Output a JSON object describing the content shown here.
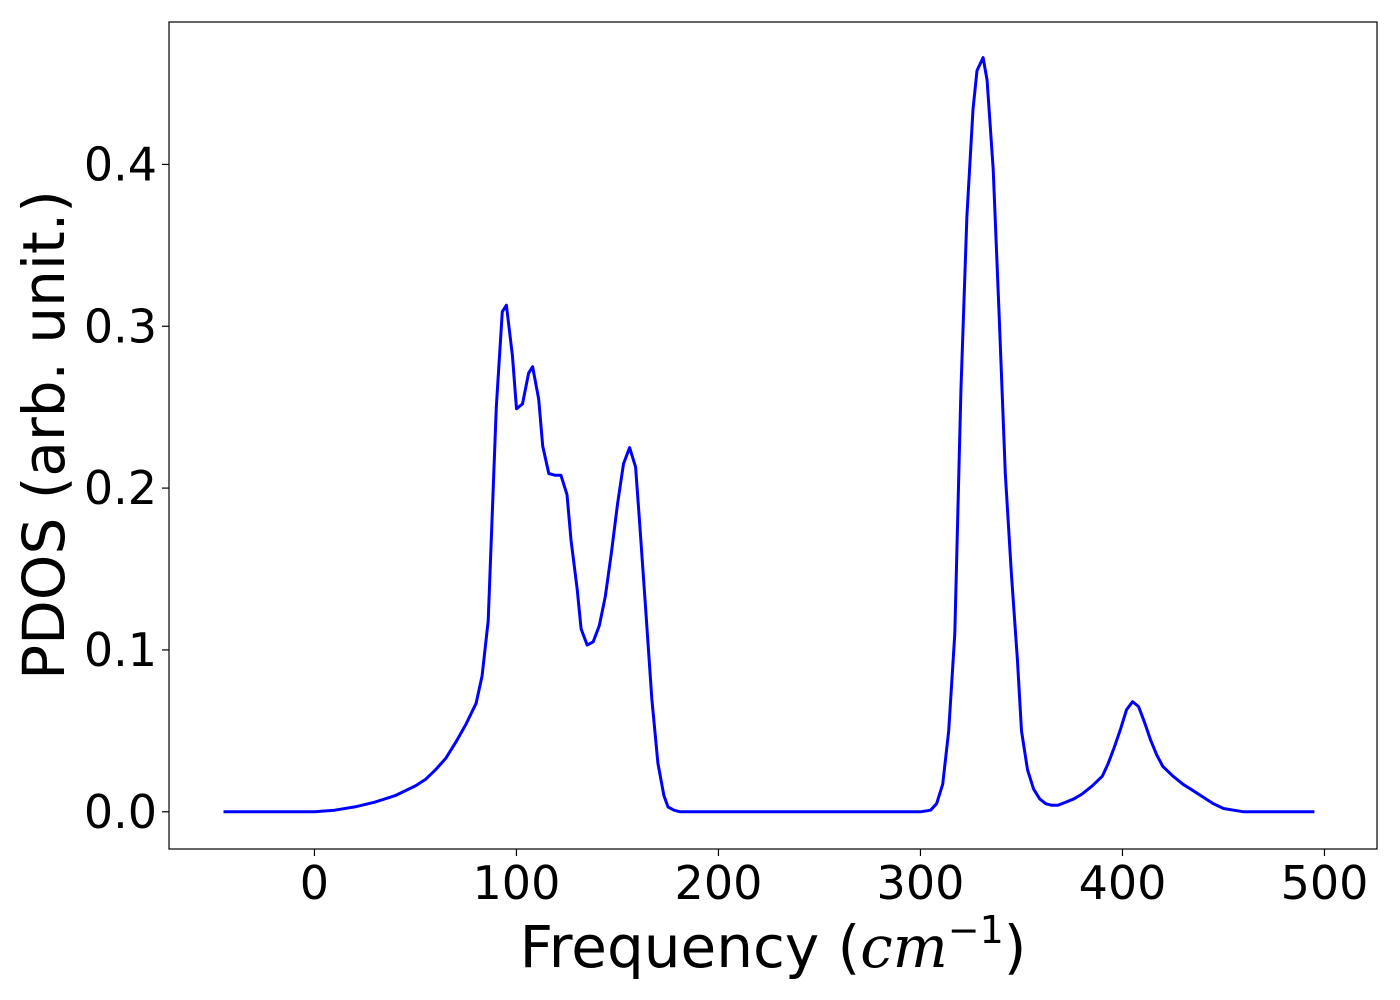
{
  "chart_data": {
    "type": "line",
    "title": "",
    "xlabel_prefix": "Frequency (",
    "xlabel_unit": "cm",
    "xlabel_exponent": "−1",
    "xlabel_suffix": ")",
    "ylabel": "PDOS (arb. unit.)",
    "xlim": [
      -72,
      526
    ],
    "ylim": [
      -0.023,
      0.488
    ],
    "xticks": [
      0,
      100,
      200,
      300,
      400,
      500
    ],
    "xtick_labels": [
      "0",
      "100",
      "200",
      "300",
      "400",
      "500"
    ],
    "yticks": [
      0.0,
      0.1,
      0.2,
      0.3,
      0.4
    ],
    "ytick_labels": [
      "0.0",
      "0.1",
      "0.2",
      "0.3",
      "0.4"
    ],
    "grid": false,
    "series": [
      {
        "color": "#0000ff",
        "x": [
          -45,
          0,
          10,
          20,
          30,
          40,
          50,
          55,
          60,
          65,
          70,
          75,
          80,
          83,
          86,
          90,
          93,
          95,
          98,
          100,
          103,
          106,
          108,
          111,
          113,
          116,
          119,
          122,
          125,
          127,
          130,
          132,
          135,
          138,
          141,
          144,
          147,
          150,
          153,
          156,
          159,
          161,
          164,
          167,
          170,
          173,
          175,
          178,
          181,
          190,
          300,
          305,
          308,
          311,
          314,
          317,
          320,
          323,
          326,
          328,
          331,
          333,
          336,
          339,
          342,
          345,
          348,
          350,
          353,
          356,
          359,
          362,
          365,
          368,
          372,
          376,
          380,
          385,
          390,
          393,
          396,
          399,
          402,
          405,
          408,
          411,
          414,
          417,
          420,
          425,
          430,
          435,
          440,
          445,
          450,
          455,
          460,
          495
        ],
        "y": [
          0.0,
          0.0,
          0.001,
          0.003,
          0.006,
          0.01,
          0.016,
          0.02,
          0.026,
          0.033,
          0.043,
          0.054,
          0.067,
          0.084,
          0.118,
          0.25,
          0.309,
          0.313,
          0.282,
          0.249,
          0.252,
          0.271,
          0.275,
          0.255,
          0.226,
          0.209,
          0.208,
          0.208,
          0.196,
          0.168,
          0.138,
          0.113,
          0.103,
          0.105,
          0.115,
          0.133,
          0.16,
          0.19,
          0.215,
          0.225,
          0.213,
          0.178,
          0.125,
          0.07,
          0.03,
          0.01,
          0.003,
          0.001,
          0.0,
          0.0,
          0.0,
          0.001,
          0.005,
          0.017,
          0.05,
          0.11,
          0.26,
          0.368,
          0.434,
          0.458,
          0.466,
          0.452,
          0.397,
          0.306,
          0.209,
          0.147,
          0.094,
          0.05,
          0.026,
          0.014,
          0.008,
          0.005,
          0.004,
          0.004,
          0.006,
          0.008,
          0.011,
          0.016,
          0.022,
          0.03,
          0.04,
          0.051,
          0.063,
          0.068,
          0.065,
          0.055,
          0.044,
          0.035,
          0.028,
          0.022,
          0.017,
          0.013,
          0.009,
          0.005,
          0.002,
          0.001,
          0.0,
          0.0
        ]
      }
    ]
  }
}
